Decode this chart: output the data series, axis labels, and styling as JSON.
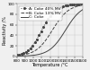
{
  "title": "",
  "xlabel": "Temperature /°C",
  "ylabel": "Reactivity /%",
  "xlim": [
    800,
    1600
  ],
  "ylim": [
    0,
    100
  ],
  "xticks": [
    800,
    900,
    1000,
    1100,
    1200,
    1300,
    1400,
    1500,
    1600
  ],
  "xtick_labels": [
    "800",
    "900",
    "1000",
    "1100",
    "1200",
    "1300",
    "1400",
    "1500",
    "1600"
  ],
  "yticks": [
    0,
    20,
    40,
    60,
    80,
    100
  ],
  "series": [
    {
      "label": "A: Coke 40% MV",
      "color": "#444444",
      "linestyle": "dotted",
      "marker": "o",
      "markersize": 1.2,
      "markevery": 20,
      "inflection": 1100,
      "steepness": 0.012,
      "linewidth": 0.7
    },
    {
      "label": "B: Coke 13% MV",
      "color": "#444444",
      "linestyle": "dashed",
      "marker": "None",
      "markersize": 1.5,
      "markevery": 20,
      "inflection": 1230,
      "steepness": 0.01,
      "linewidth": 0.7
    },
    {
      "label": "C: Coke",
      "color": "#444444",
      "linestyle": "solid",
      "marker": "None",
      "markersize": 1.5,
      "markevery": 20,
      "inflection": 1390,
      "steepness": 0.01,
      "linewidth": 0.7
    }
  ],
  "background_color": "#f0f0f0",
  "grid": true,
  "legend_fontsize": 3.2,
  "axis_label_fontsize": 3.5,
  "tick_fontsize": 3.0
}
